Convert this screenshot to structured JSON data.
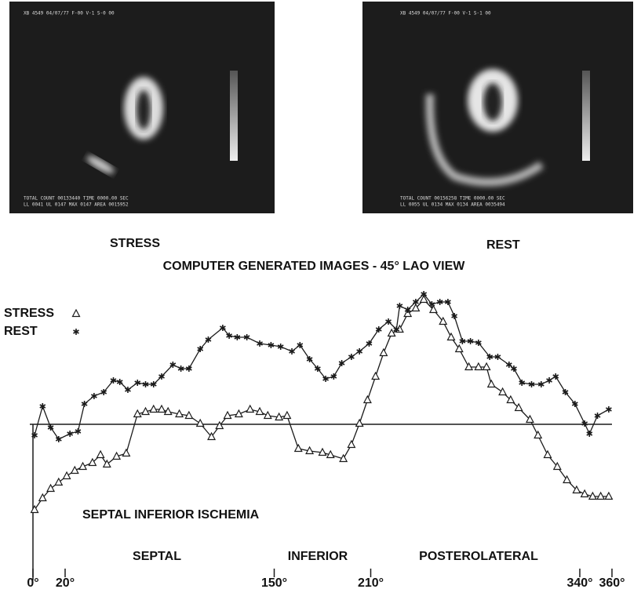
{
  "images": [
    {
      "header": "XB 4549 04/07/77 F-00 V-1 S-0 00",
      "footer_1": "TOTAL COUNT 00133440 TIME 0000.00 SEC",
      "footer_2": "LL 0041 UL 0147 MAX 0147 AREA 0015952",
      "caption": "STRESS"
    },
    {
      "header": "XB 4549 04/07/77 F-00 V-1 S-1 00",
      "footer_1": "TOTAL COUNT 00156258 TIME 0000.00 SEC",
      "footer_2": "LL 0055 UL 0134 MAX 0134 AREA 0035494",
      "caption": "REST"
    }
  ],
  "chart_data": {
    "type": "line",
    "title": "COMPUTER GENERATED IMAGES - 45° LAO VIEW",
    "annotation": "SEPTAL INFERIOR ISCHEMIA",
    "regions": [
      "SEPTAL",
      "INFERIOR",
      "POSTEROLATERAL"
    ],
    "xlim": [
      0,
      360
    ],
    "ylim": [
      -12,
      17
    ],
    "xticks": [
      {
        "value": 0,
        "label": "0°"
      },
      {
        "value": 20,
        "label": "20°"
      },
      {
        "value": 150,
        "label": "150°"
      },
      {
        "value": 210,
        "label": "210°"
      },
      {
        "value": 340,
        "label": "340°"
      },
      {
        "value": 360,
        "label": "360°"
      }
    ],
    "color": "#1a1a1a",
    "series": [
      {
        "name": "STRESS",
        "marker": "triangle",
        "x": [
          1,
          6,
          11,
          16,
          21,
          26,
          31,
          37,
          42,
          46,
          52,
          58,
          65,
          70,
          75,
          80,
          84,
          91,
          97,
          104,
          111,
          116,
          121,
          128,
          135,
          141,
          146,
          153,
          158,
          165,
          172,
          180,
          185,
          193,
          198,
          203,
          208,
          213,
          218,
          223,
          228,
          233,
          238,
          243,
          249,
          255,
          260,
          265,
          271,
          277,
          282,
          285,
          292,
          297,
          302,
          309,
          314,
          320,
          326,
          332,
          338,
          343,
          348,
          353,
          358
        ],
        "values": [
          -10.9,
          -9.4,
          -8.2,
          -7.4,
          -6.6,
          -5.9,
          -5.4,
          -4.9,
          -3.9,
          -5.1,
          -4.1,
          -3.7,
          1.3,
          1.6,
          1.9,
          1.9,
          1.6,
          1.3,
          1.1,
          0.1,
          -1.6,
          -0.2,
          1.1,
          1.3,
          1.9,
          1.6,
          1.1,
          0.9,
          1.1,
          -3.1,
          -3.4,
          -3.6,
          -3.9,
          -4.4,
          -2.6,
          0.1,
          3.1,
          6.1,
          9.1,
          11.6,
          12.1,
          14.1,
          14.8,
          15.9,
          14.6,
          13.1,
          11.1,
          9.6,
          7.3,
          7.3,
          7.3,
          5.1,
          4.1,
          3.1,
          2.1,
          0.6,
          -1.4,
          -3.9,
          -5.4,
          -7.1,
          -8.4,
          -8.9,
          -9.2,
          -9.2,
          -9.2
        ]
      },
      {
        "name": "REST",
        "marker": "star",
        "x": [
          1,
          6,
          11,
          16,
          23,
          28,
          32,
          38,
          44,
          50,
          54,
          59,
          65,
          70,
          75,
          80,
          87,
          92,
          97,
          104,
          109,
          118,
          122,
          127,
          133,
          141,
          148,
          154,
          161,
          166,
          172,
          177,
          182,
          187,
          192,
          198,
          203,
          209,
          215,
          221,
          226,
          228,
          233,
          238,
          243,
          248,
          253,
          258,
          262,
          267,
          272,
          277,
          284,
          289,
          296,
          299,
          304,
          310,
          316,
          321,
          325,
          331,
          337,
          343,
          346,
          351,
          358
        ],
        "values": [
          -1.4,
          2.3,
          -0.4,
          -1.9,
          -1.2,
          -0.9,
          2.6,
          3.6,
          4.1,
          5.6,
          5.4,
          4.4,
          5.3,
          5.1,
          5.1,
          6.1,
          7.6,
          7.1,
          7.1,
          9.6,
          10.8,
          12.3,
          11.3,
          11.1,
          11.1,
          10.3,
          10.1,
          9.9,
          9.3,
          10.1,
          8.3,
          7.1,
          5.8,
          6.1,
          7.8,
          8.6,
          9.3,
          10.3,
          12.1,
          13.1,
          12.1,
          15.1,
          14.6,
          15.6,
          16.6,
          15.3,
          15.6,
          15.6,
          13.8,
          10.6,
          10.6,
          10.4,
          8.6,
          8.6,
          7.6,
          7.1,
          5.3,
          5.1,
          5.1,
          5.6,
          6.1,
          4.1,
          2.6,
          0.1,
          -1.2,
          1.1,
          1.9
        ]
      }
    ]
  }
}
